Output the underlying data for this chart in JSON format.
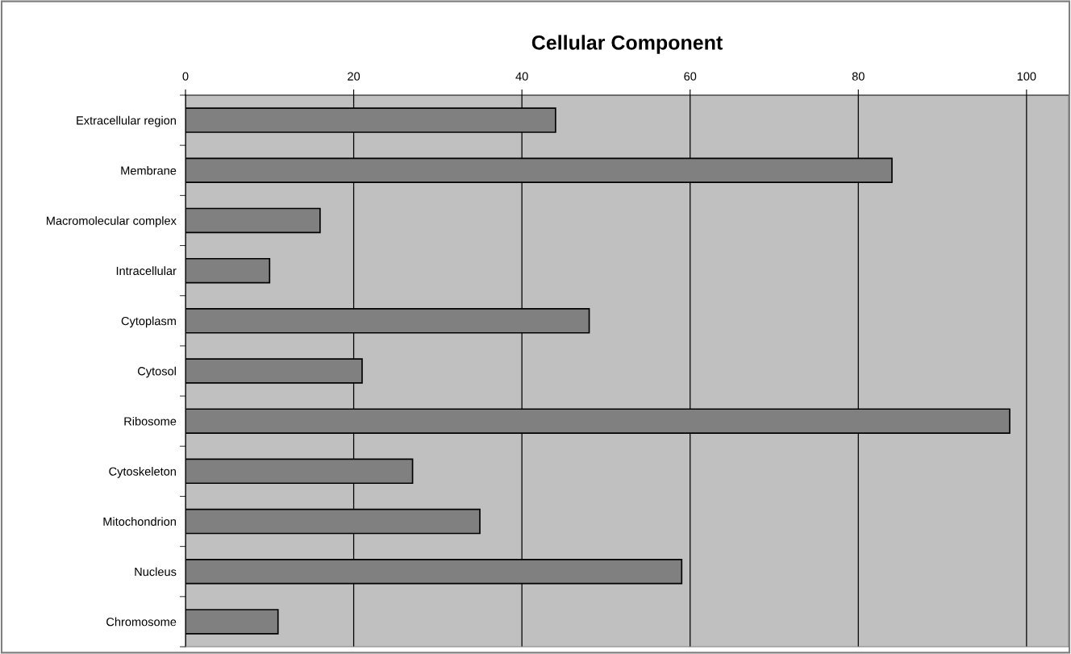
{
  "chart_data": {
    "type": "bar",
    "orientation": "horizontal",
    "title": "Cellular Component",
    "categories": [
      "Extracellular region",
      "Membrane",
      "Macromolecular complex",
      "Intracellular",
      "Cytoplasm",
      "Cytosol",
      "Ribosome",
      "Cytoskeleton",
      "Mitochondrion",
      "Nucleus",
      "Chromosome"
    ],
    "values": [
      44,
      84,
      16,
      10,
      48,
      21,
      98,
      27,
      35,
      59,
      11
    ],
    "color": "#808080",
    "xlim": [
      0,
      105
    ],
    "xticks": [
      0,
      20,
      40,
      60,
      80,
      100
    ],
    "grid": "x",
    "legend": false
  }
}
